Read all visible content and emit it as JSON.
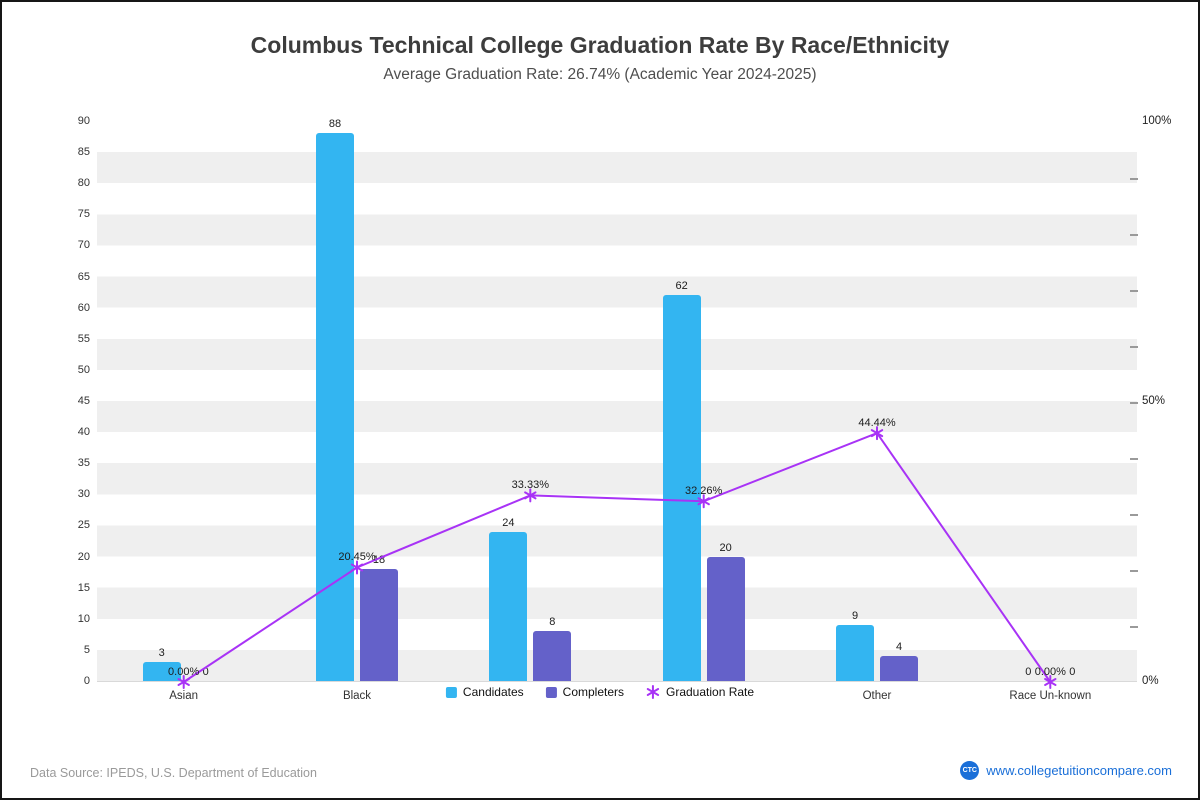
{
  "title": "Columbus Technical College Graduation Rate By Race/Ethnicity",
  "subtitle": "Average Graduation Rate: 26.74% (Academic Year 2024-2025)",
  "footer": {
    "source": "Data Source: IPEDS, U.S. Department of Education",
    "logo_text": "CTC",
    "site": "www.collegetuitioncompare.com"
  },
  "colors": {
    "candidates": "#33B5F1",
    "completers": "#6461C9",
    "rate_line": "#A833F6",
    "link_blue": "#1A6FD8",
    "stripe_gray": "#EFEFEF"
  },
  "chart_data": {
    "type": "bar+line",
    "title": "Columbus Technical College Graduation Rate By Race/Ethnicity",
    "subtitle": "Average Graduation Rate: 26.74% (Academic Year 2024-2025)",
    "categories": [
      "Asian",
      "Black",
      "",
      "",
      "Other",
      "Race Un-known"
    ],
    "series": [
      {
        "name": "Candidates",
        "type": "bar",
        "color": "#33B5F1",
        "values": [
          3,
          88,
          24,
          62,
          9,
          0
        ]
      },
      {
        "name": "Completers",
        "type": "bar",
        "color": "#6461C9",
        "values": [
          0,
          18,
          8,
          20,
          4,
          0
        ]
      },
      {
        "name": "Graduation Rate",
        "type": "line",
        "color": "#A833F6",
        "values_pct": [
          0,
          20.45,
          33.33,
          32.26,
          44.44,
          0
        ],
        "point_labels": [
          "0.00%",
          "20.45%",
          "33.33%",
          "32.26%",
          "44.44%",
          "0.00%"
        ]
      }
    ],
    "left_axis": {
      "min": 0,
      "max": 90,
      "step": 5
    },
    "right_axis": {
      "labels": [
        "0%",
        "50%",
        "100%"
      ],
      "values": [
        0,
        50,
        100
      ],
      "max": 100
    },
    "legend_position": "bottom-center",
    "grid": "horizontal striped bands"
  }
}
